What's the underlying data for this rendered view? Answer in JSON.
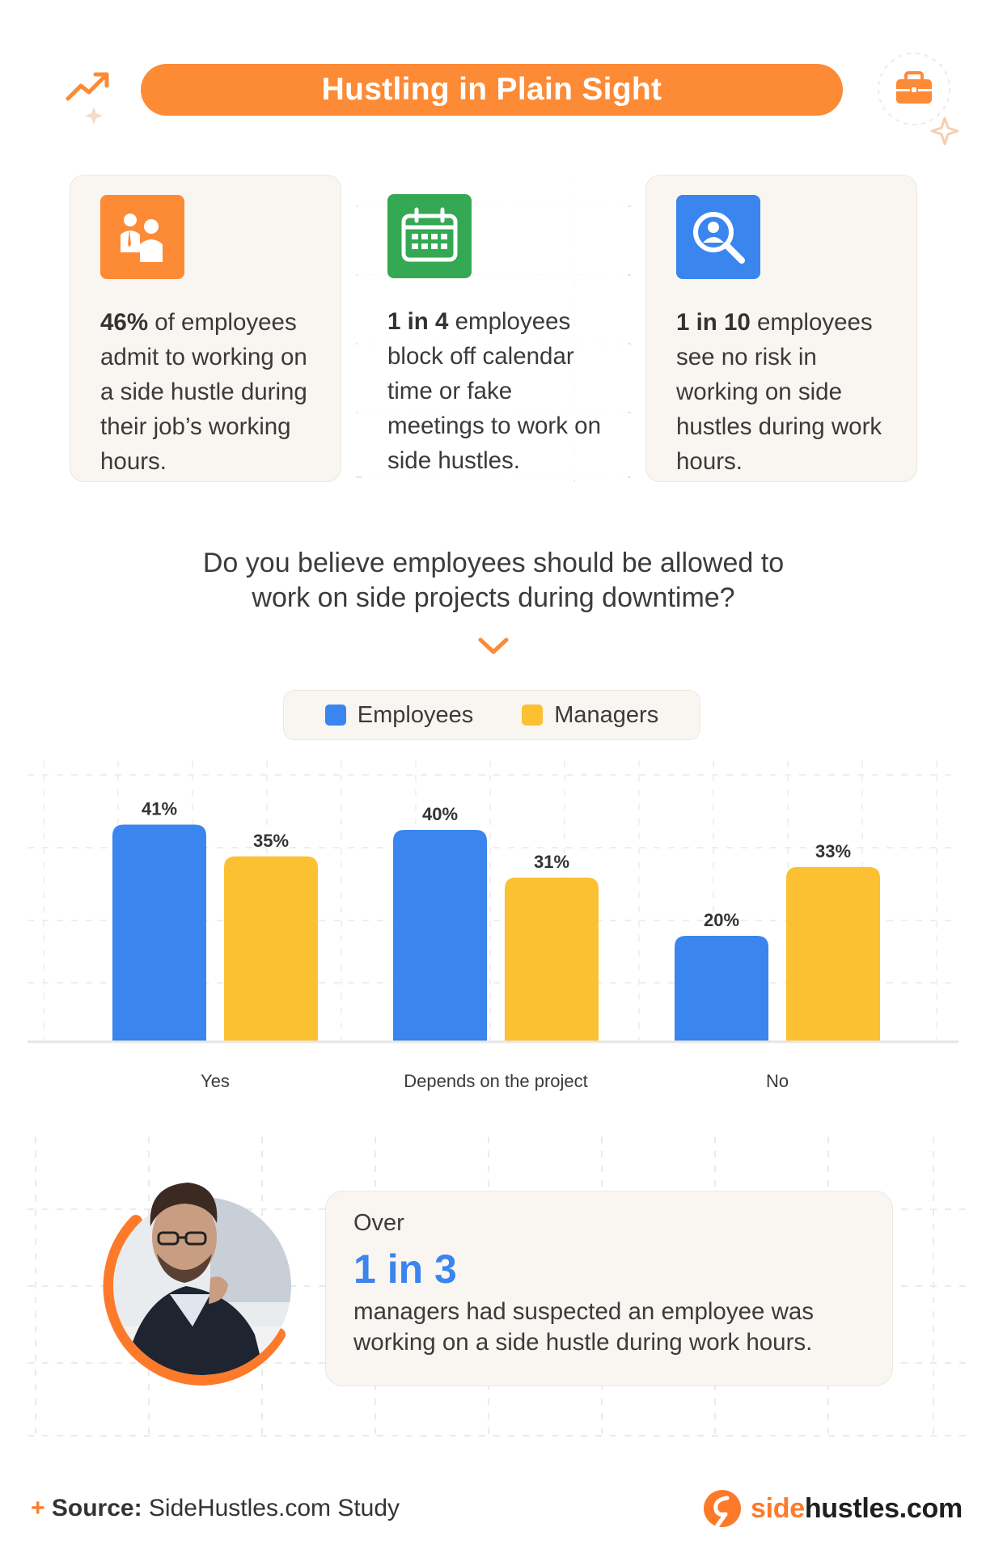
{
  "header": {
    "title": "Hustling in Plain Sight"
  },
  "stats": [
    {
      "bold": "46%",
      "text": " of employees admit to working on a side hustle during their job’s working hours.",
      "icon": "people-icon",
      "color": "#fd8a35"
    },
    {
      "bold": "1 in 4",
      "text": " employees block off calendar time or fake meetings to work on side hustles.",
      "icon": "calendar-icon",
      "color": "#35a853"
    },
    {
      "bold": "1 in 10",
      "text": " employees see no risk in working on side hustles during work hours.",
      "icon": "magnifier-user-icon",
      "color": "#3a85ee"
    }
  ],
  "question": {
    "line1": "Do you believe employees should be allowed to",
    "line2": "work on side projects during downtime?"
  },
  "legend": {
    "employees": "Employees",
    "managers": "Managers"
  },
  "chart_data": {
    "type": "bar",
    "categories": [
      "Yes",
      "Depends on the project",
      "No"
    ],
    "series": [
      {
        "name": "Employees",
        "values": [
          41,
          40,
          20
        ],
        "color": "#3a85ee"
      },
      {
        "name": "Managers",
        "values": [
          35,
          31,
          33
        ],
        "color": "#fcc033"
      }
    ],
    "data_labels": [
      [
        "41%",
        "40%",
        "20%"
      ],
      [
        "35%",
        "31%",
        "33%"
      ]
    ],
    "title": "",
    "xlabel": "",
    "ylabel": "",
    "ylim": [
      0,
      50
    ],
    "grid": true,
    "legend_placement": "top"
  },
  "callout": {
    "pre": "Over",
    "big": "1 in 3",
    "text": "managers had suspected an employee was working on a side hustle during work hours."
  },
  "footer": {
    "source_label": "Source:",
    "source_text": " SideHustles.com Study",
    "logo_side": "side",
    "logo_rest": "hustles.com"
  }
}
